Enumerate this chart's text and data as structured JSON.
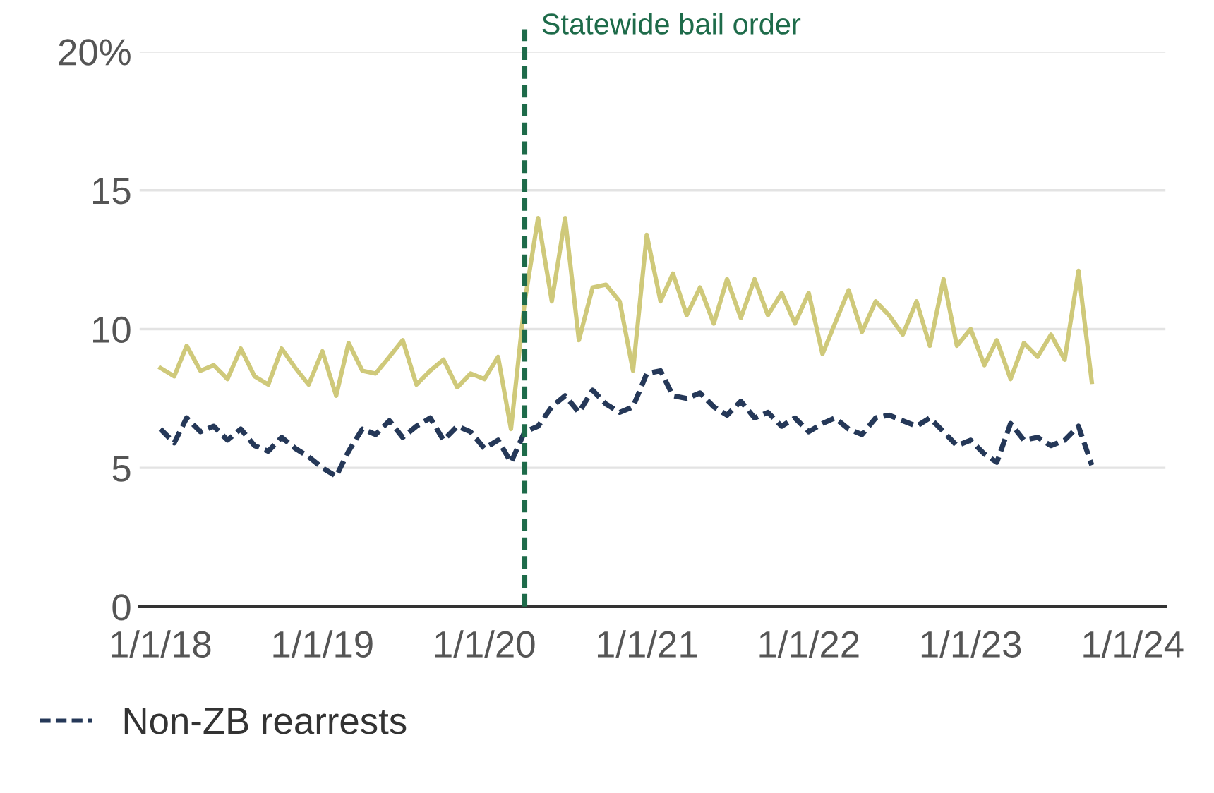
{
  "chart_data": {
    "type": "line",
    "x": [
      "2018-01",
      "2018-02",
      "2018-03",
      "2018-04",
      "2018-05",
      "2018-06",
      "2018-07",
      "2018-08",
      "2018-09",
      "2018-10",
      "2018-11",
      "2018-12",
      "2019-01",
      "2019-02",
      "2019-03",
      "2019-04",
      "2019-05",
      "2019-06",
      "2019-07",
      "2019-08",
      "2019-09",
      "2019-10",
      "2019-11",
      "2019-12",
      "2020-01",
      "2020-02",
      "2020-03",
      "2020-04",
      "2020-05",
      "2020-06",
      "2020-07",
      "2020-08",
      "2020-09",
      "2020-10",
      "2020-11",
      "2020-12",
      "2021-01",
      "2021-02",
      "2021-03",
      "2021-04",
      "2021-05",
      "2021-06",
      "2021-07",
      "2021-08",
      "2021-09",
      "2021-10",
      "2021-11",
      "2021-12",
      "2022-01",
      "2022-02",
      "2022-03",
      "2022-04",
      "2022-05",
      "2022-06",
      "2022-07",
      "2022-08",
      "2022-09",
      "2022-10",
      "2022-11",
      "2022-12",
      "2023-01",
      "2023-02",
      "2023-03",
      "2023-04",
      "2023-05",
      "2023-06",
      "2023-07",
      "2023-08",
      "2023-09",
      "2023-10"
    ],
    "series": [
      {
        "color": "#cfc97a",
        "line_style": "solid",
        "values": [
          8.6,
          8.3,
          9.4,
          8.5,
          8.7,
          8.2,
          9.3,
          8.3,
          8.0,
          9.3,
          8.6,
          8.0,
          9.2,
          7.6,
          9.5,
          8.5,
          8.4,
          9.0,
          9.6,
          8.0,
          8.5,
          8.9,
          7.9,
          8.4,
          8.2,
          9.0,
          6.4,
          11.0,
          14.0,
          11.0,
          14.0,
          9.6,
          11.5,
          11.6,
          11.0,
          8.5,
          13.4,
          11.0,
          12.0,
          10.5,
          11.5,
          10.2,
          11.8,
          10.4,
          11.8,
          10.5,
          11.3,
          10.2,
          11.3,
          9.1,
          10.2,
          11.4,
          9.9,
          11.0,
          10.5,
          9.8,
          11.0,
          9.4,
          11.8,
          9.4,
          10.0,
          8.7,
          9.6,
          8.2,
          9.5,
          9.0,
          9.8,
          8.9,
          12.1,
          8.1
        ]
      },
      {
        "name": "Non-ZB rearrests",
        "color": "#253858",
        "line_style": "dashed",
        "values": [
          6.4,
          5.9,
          6.8,
          6.3,
          6.5,
          6.0,
          6.4,
          5.8,
          5.6,
          6.1,
          5.7,
          5.4,
          5.0,
          4.7,
          5.6,
          6.4,
          6.2,
          6.7,
          6.1,
          6.5,
          6.8,
          6.0,
          6.5,
          6.3,
          5.7,
          6.0,
          5.2,
          6.3,
          6.5,
          7.2,
          7.6,
          7.0,
          7.8,
          7.3,
          7.0,
          7.2,
          8.4,
          8.5,
          7.6,
          7.5,
          7.7,
          7.2,
          6.9,
          7.4,
          6.8,
          7.0,
          6.5,
          6.8,
          6.3,
          6.6,
          6.8,
          6.4,
          6.2,
          6.8,
          6.9,
          6.7,
          6.5,
          6.8,
          6.3,
          5.8,
          6.0,
          5.5,
          5.2,
          6.6,
          6.0,
          6.1,
          5.8,
          6.0,
          6.5,
          5.1
        ]
      }
    ],
    "xlim": [
      "2017-11-15",
      "2024-03-15"
    ],
    "xticks": [
      {
        "value": "2018-01-01",
        "label": "1/1/18"
      },
      {
        "value": "2019-01-01",
        "label": "1/1/19"
      },
      {
        "value": "2020-01-01",
        "label": "1/1/20"
      },
      {
        "value": "2021-01-01",
        "label": "1/1/21"
      },
      {
        "value": "2022-01-01",
        "label": "1/1/22"
      },
      {
        "value": "2023-01-01",
        "label": "1/1/23"
      },
      {
        "value": "2024-01-01",
        "label": "1/1/24"
      }
    ],
    "ylim": [
      0,
      20
    ],
    "yticks": [
      0,
      5,
      10,
      15,
      {
        "value": 20,
        "label": "20%"
      }
    ],
    "ref_lines": [
      {
        "axis": "x",
        "value": "2020-04-01",
        "label": "Statewide bail order",
        "color": "#1e6b4a",
        "line_style": "dashed"
      }
    ],
    "grid": "y",
    "marker": "none",
    "legend": "bottom"
  }
}
